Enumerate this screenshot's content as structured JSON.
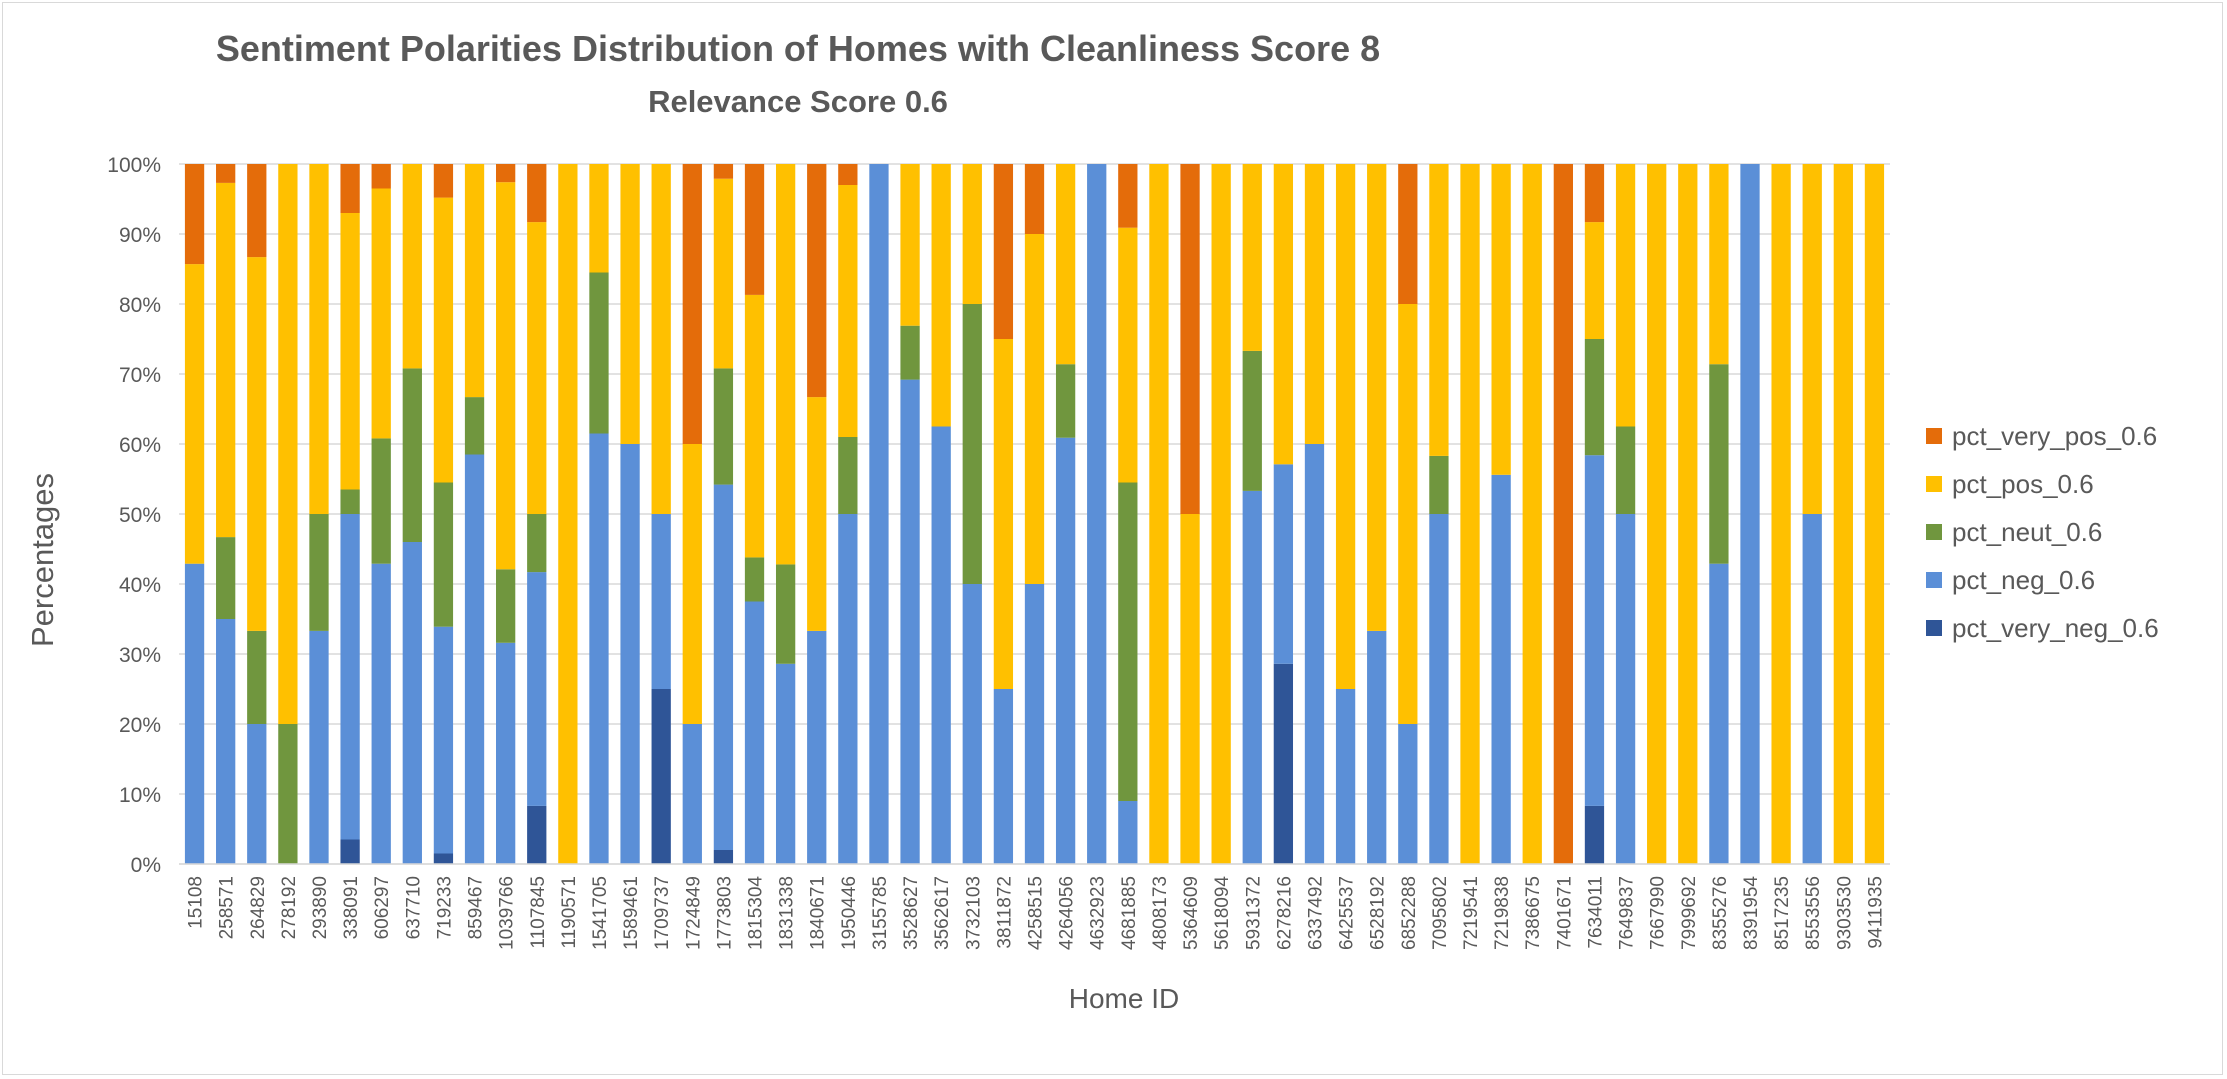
{
  "chart_data": {
    "type": "bar",
    "stacked": "percent",
    "title": "Sentiment Polarities Distribution of Homes with Cleanliness Score 8",
    "subtitle": "Relevance Score 0.6",
    "xlabel": "Home ID",
    "ylabel": "Percentages",
    "ylim": [
      0,
      100
    ],
    "yticks": [
      "0%",
      "10%",
      "20%",
      "30%",
      "40%",
      "50%",
      "60%",
      "70%",
      "80%",
      "90%",
      "100%"
    ],
    "grid": true,
    "legend_position": "right",
    "categories": [
      "15108",
      "258571",
      "264829",
      "278192",
      "293890",
      "338091",
      "606297",
      "637710",
      "719233",
      "859467",
      "1039766",
      "1107845",
      "1190571",
      "1541705",
      "1589461",
      "1709737",
      "1724849",
      "1773803",
      "1815304",
      "1831338",
      "1840671",
      "1950446",
      "3155785",
      "3528627",
      "3562617",
      "3732103",
      "3811872",
      "4258515",
      "4264056",
      "4632923",
      "4681885",
      "4808173",
      "5364609",
      "5618094",
      "5931372",
      "6278216",
      "6337492",
      "6425537",
      "6528192",
      "6852288",
      "7095802",
      "7219541",
      "7219838",
      "7386675",
      "7401671",
      "7634011",
      "7649837",
      "7667990",
      "7999692",
      "8355276",
      "8391954",
      "8517235",
      "8553556",
      "9303530",
      "9411935"
    ],
    "series": [
      {
        "name": "pct_very_neg_0.6",
        "color": "#2f5597",
        "values": [
          0,
          0,
          0,
          0,
          0,
          3.5,
          0,
          0,
          1.5,
          0,
          0,
          8.3,
          0,
          0,
          0,
          25,
          0,
          2,
          0,
          0,
          0,
          0,
          0,
          0,
          0,
          0,
          0,
          0,
          0,
          0,
          0,
          0,
          0,
          0,
          0,
          28.6,
          0,
          0,
          0,
          0,
          0,
          0,
          0,
          0,
          0,
          8.3,
          0,
          0,
          0,
          0,
          0,
          0,
          0,
          0,
          0
        ]
      },
      {
        "name": "pct_neg_0.6",
        "color": "#5b8fd7",
        "values": [
          42.9,
          35,
          20,
          0,
          33.3,
          46.5,
          42.9,
          46,
          32.4,
          58.5,
          31.6,
          33.4,
          0,
          61.5,
          60,
          25,
          20,
          52.2,
          37.5,
          28.6,
          33.3,
          50,
          100,
          69.2,
          62.5,
          40,
          25,
          40,
          60.9,
          100,
          9,
          0,
          0,
          0,
          53.3,
          28.5,
          60,
          25,
          33.3,
          20,
          50,
          0,
          55.6,
          0,
          0,
          50.1,
          50,
          0,
          0,
          42.9,
          100,
          0,
          50,
          0,
          0
        ]
      },
      {
        "name": "pct_neut_0.6",
        "color": "#70963e",
        "values": [
          0,
          11.7,
          13.3,
          20,
          16.7,
          3.5,
          17.9,
          24.8,
          20.6,
          8.2,
          10.5,
          8.3,
          0,
          23,
          0,
          0,
          0,
          16.6,
          6.3,
          14.2,
          0,
          11,
          0,
          7.7,
          0,
          40,
          0,
          0,
          10.5,
          0,
          45.5,
          0,
          0,
          0,
          20,
          0,
          0,
          0,
          0,
          0,
          8.3,
          0,
          0,
          0,
          0,
          16.6,
          12.5,
          0,
          0,
          28.5,
          0,
          0,
          0,
          0,
          0
        ]
      },
      {
        "name": "pct_pos_0.6",
        "color": "#ffc000",
        "values": [
          42.8,
          50.6,
          53.4,
          80,
          50,
          39.5,
          35.7,
          29.2,
          40.7,
          33.3,
          55.3,
          41.7,
          100,
          15.5,
          40,
          50,
          40,
          27.1,
          37.5,
          57.2,
          33.4,
          36,
          0,
          23.1,
          37.5,
          20,
          50,
          50,
          28.6,
          0,
          36.4,
          100,
          50,
          100,
          26.7,
          42.9,
          40,
          75,
          66.7,
          60,
          41.7,
          100,
          44.4,
          100,
          0,
          16.7,
          37.5,
          100,
          100,
          28.6,
          0,
          100,
          50,
          100,
          100
        ]
      },
      {
        "name": "pct_very_pos_0.6",
        "color": "#e46c0a",
        "values": [
          14.3,
          2.7,
          13.3,
          0,
          0,
          7,
          3.5,
          0,
          4.8,
          0,
          2.6,
          8.3,
          0,
          0,
          0,
          0,
          40,
          2.1,
          18.7,
          0,
          33.3,
          3,
          0,
          0,
          0,
          0,
          25,
          10,
          0,
          0,
          9.1,
          0,
          50,
          0,
          0,
          0,
          0,
          0,
          0,
          20,
          0,
          0,
          0,
          0,
          100,
          8.3,
          0,
          0,
          0,
          0,
          0,
          0,
          0,
          0,
          0
        ]
      }
    ]
  }
}
